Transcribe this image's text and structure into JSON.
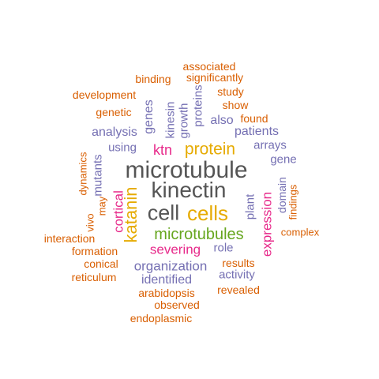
{
  "palette": {
    "orange": "#d95f02",
    "purple": "#7570b3",
    "magenta": "#e7298a",
    "green": "#66a61e",
    "gold": "#e6ab02",
    "gray": "#555555"
  },
  "words": [
    {
      "text": "microtubule",
      "color": "gray",
      "vertical": false
    },
    {
      "text": "kinectin",
      "color": "gray",
      "vertical": false
    },
    {
      "text": "cell",
      "color": "gray",
      "vertical": false
    },
    {
      "text": "cells",
      "color": "gold",
      "vertical": false
    },
    {
      "text": "microtubules",
      "color": "green",
      "vertical": false
    },
    {
      "text": "katanin",
      "color": "gold",
      "vertical": true
    },
    {
      "text": "protein",
      "color": "gold",
      "vertical": false
    },
    {
      "text": "ktn",
      "color": "magenta",
      "vertical": false
    },
    {
      "text": "cortical",
      "color": "magenta",
      "vertical": true
    },
    {
      "text": "severing",
      "color": "magenta",
      "vertical": false
    },
    {
      "text": "expression",
      "color": "magenta",
      "vertical": true
    },
    {
      "text": "organization",
      "color": "purple",
      "vertical": false
    },
    {
      "text": "identified",
      "color": "purple",
      "vertical": false
    },
    {
      "text": "analysis",
      "color": "purple",
      "vertical": false
    },
    {
      "text": "genes",
      "color": "purple",
      "vertical": true
    },
    {
      "text": "kinesin",
      "color": "purple",
      "vertical": true
    },
    {
      "text": "growth",
      "color": "purple",
      "vertical": true
    },
    {
      "text": "proteins",
      "color": "purple",
      "vertical": true
    },
    {
      "text": "also",
      "color": "purple",
      "vertical": false
    },
    {
      "text": "patients",
      "color": "purple",
      "vertical": false
    },
    {
      "text": "using",
      "color": "purple",
      "vertical": false
    },
    {
      "text": "arrays",
      "color": "purple",
      "vertical": false
    },
    {
      "text": "gene",
      "color": "purple",
      "vertical": false
    },
    {
      "text": "mutants",
      "color": "purple",
      "vertical": true
    },
    {
      "text": "plant",
      "color": "purple",
      "vertical": true
    },
    {
      "text": "domain",
      "color": "purple",
      "vertical": true
    },
    {
      "text": "role",
      "color": "purple",
      "vertical": false
    },
    {
      "text": "activity",
      "color": "purple",
      "vertical": false
    },
    {
      "text": "associated",
      "color": "orange",
      "vertical": false
    },
    {
      "text": "binding",
      "color": "orange",
      "vertical": false
    },
    {
      "text": "significantly",
      "color": "orange",
      "vertical": false
    },
    {
      "text": "development",
      "color": "orange",
      "vertical": false
    },
    {
      "text": "study",
      "color": "orange",
      "vertical": false
    },
    {
      "text": "show",
      "color": "orange",
      "vertical": false
    },
    {
      "text": "genetic",
      "color": "orange",
      "vertical": false
    },
    {
      "text": "found",
      "color": "orange",
      "vertical": false
    },
    {
      "text": "dynamics",
      "color": "orange",
      "vertical": true
    },
    {
      "text": "findings",
      "color": "orange",
      "vertical": true
    },
    {
      "text": "vivo",
      "color": "orange",
      "vertical": true
    },
    {
      "text": "may",
      "color": "orange",
      "vertical": true
    },
    {
      "text": "complex",
      "color": "orange",
      "vertical": false
    },
    {
      "text": "interaction",
      "color": "orange",
      "vertical": false
    },
    {
      "text": "formation",
      "color": "orange",
      "vertical": false
    },
    {
      "text": "conical",
      "color": "orange",
      "vertical": false
    },
    {
      "text": "reticulum",
      "color": "orange",
      "vertical": false
    },
    {
      "text": "results",
      "color": "orange",
      "vertical": false
    },
    {
      "text": "arabidopsis",
      "color": "orange",
      "vertical": false
    },
    {
      "text": "revealed",
      "color": "orange",
      "vertical": false
    },
    {
      "text": "observed",
      "color": "orange",
      "vertical": false
    },
    {
      "text": "endoplasmic",
      "color": "orange",
      "vertical": false
    }
  ]
}
